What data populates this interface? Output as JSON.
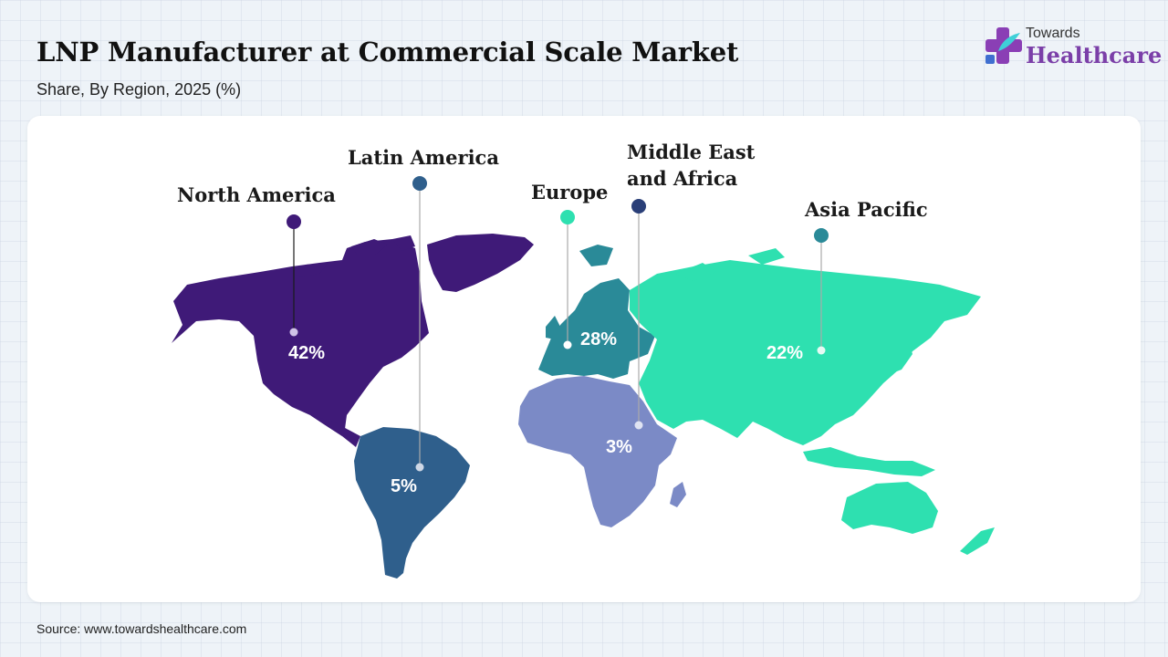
{
  "header": {
    "title": "LNP Manufacturer at Commercial Scale Market",
    "subtitle": "Share, By Region, 2025 (%)"
  },
  "logo": {
    "line1": "Towards",
    "line2": "Healthcare",
    "icon": "medical-cross-icon"
  },
  "regions": {
    "north_america": {
      "name": "North America",
      "value": "42%",
      "share": 42,
      "color": "#3f1a78"
    },
    "latin_america": {
      "name": "Latin America",
      "value": "5%",
      "share": 5,
      "color": "#2f5f8c"
    },
    "europe": {
      "name": "Europe",
      "value": "28%",
      "share": 28,
      "color": "#2a8a98"
    },
    "mea": {
      "name_line1": "Middle East",
      "name_line2": "and Africa",
      "value": "3%",
      "share": 3,
      "color": "#7b8ac6"
    },
    "asia_pacific": {
      "name": "Asia Pacific",
      "value": "22%",
      "share": 22,
      "color": "#2ee0b0"
    }
  },
  "footer": {
    "source": "Source: www.towardshealthcare.com"
  }
}
